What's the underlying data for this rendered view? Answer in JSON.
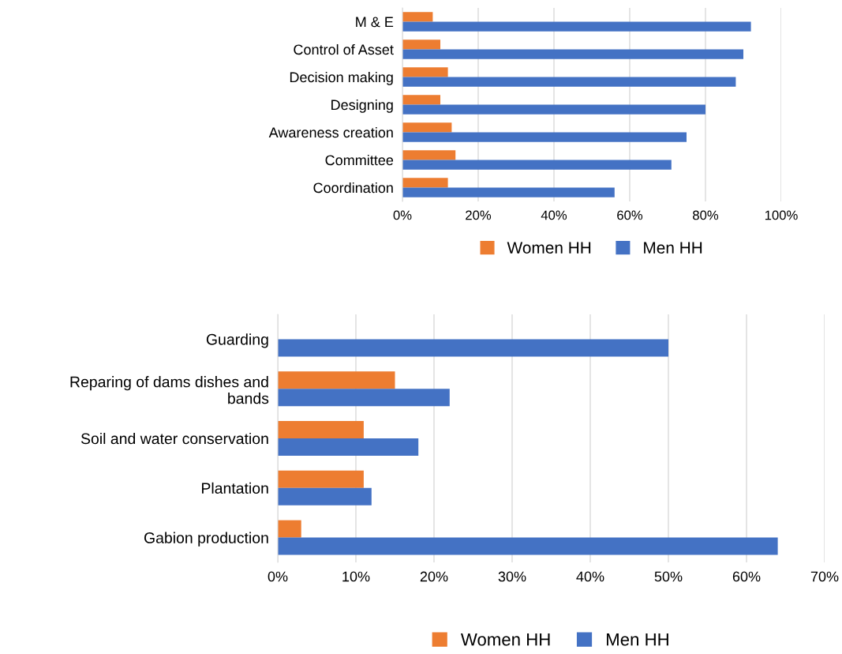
{
  "chart_data": [
    {
      "type": "bar",
      "orientation": "horizontal",
      "categories": [
        "M & E",
        "Control of Asset",
        "Decision making",
        "Designing",
        "Awareness creation",
        "Committee",
        "Coordination"
      ],
      "series": [
        {
          "name": "Women HH",
          "color": "#ed7d31",
          "values": [
            8,
            10,
            12,
            10,
            13,
            14,
            12
          ]
        },
        {
          "name": "Men HH",
          "color": "#4472c4",
          "values": [
            92,
            90,
            88,
            80,
            75,
            71,
            56
          ]
        }
      ],
      "xlim": [
        0,
        100
      ],
      "xticks": [
        {
          "value": 0,
          "label": "0%"
        },
        {
          "value": 20,
          "label": "20%"
        },
        {
          "value": 40,
          "label": "40%"
        },
        {
          "value": 60,
          "label": "60%"
        },
        {
          "value": 80,
          "label": "80%"
        },
        {
          "value": 100,
          "label": "100%"
        }
      ],
      "grid": "x",
      "legend": "bottom"
    },
    {
      "type": "bar",
      "orientation": "horizontal",
      "categories": [
        "Guarding",
        "Reparing of dams dishes and\nbands",
        "Soil and water conservation",
        "Plantation",
        "Gabion production"
      ],
      "series": [
        {
          "name": "Women HH",
          "color": "#ed7d31",
          "values": [
            null,
            15,
            11,
            11,
            3
          ]
        },
        {
          "name": "Men HH",
          "color": "#4472c4",
          "values": [
            50,
            22,
            18,
            12,
            64
          ]
        }
      ],
      "xlim": [
        0,
        70
      ],
      "xticks": [
        {
          "value": 0,
          "label": "0%"
        },
        {
          "value": 10,
          "label": "10%"
        },
        {
          "value": 20,
          "label": "20%"
        },
        {
          "value": 30,
          "label": "30%"
        },
        {
          "value": 40,
          "label": "40%"
        },
        {
          "value": 50,
          "label": "50%"
        },
        {
          "value": 60,
          "label": "60%"
        },
        {
          "value": 70,
          "label": "70%"
        }
      ],
      "grid": "x",
      "legend": "bottom"
    }
  ]
}
